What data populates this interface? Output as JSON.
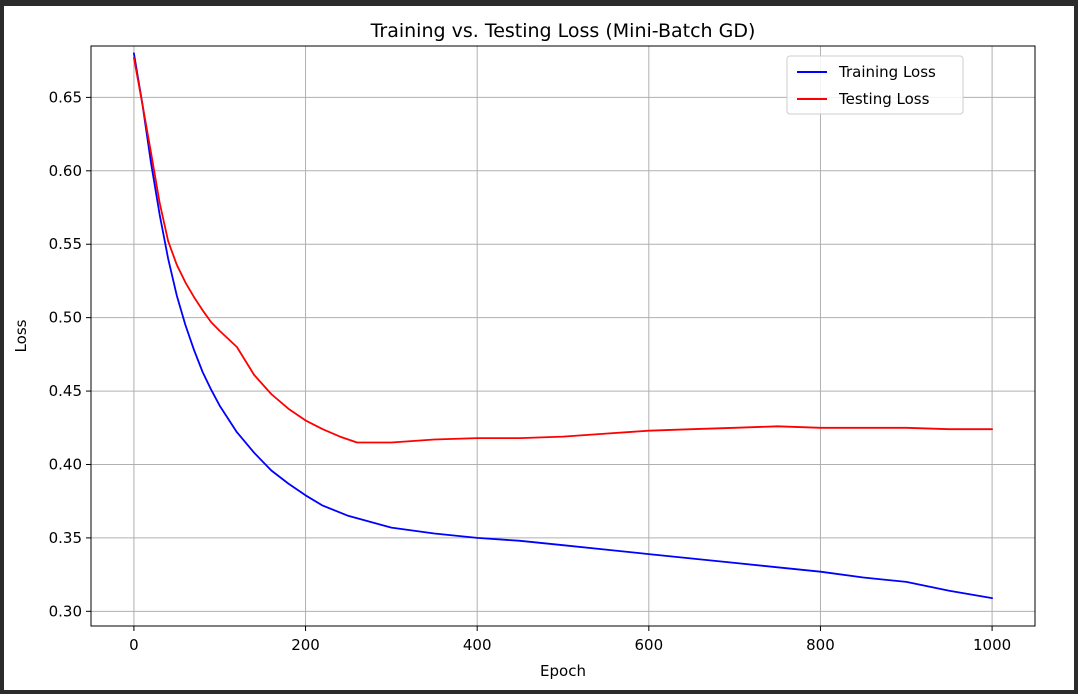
{
  "chart_data": {
    "type": "line",
    "title": "Training vs. Testing Loss (Mini-Batch GD)",
    "xlabel": "Epoch",
    "ylabel": "Loss",
    "xlim": [
      -50,
      1050
    ],
    "ylim": [
      0.29,
      0.685
    ],
    "xticks": [
      0,
      200,
      400,
      600,
      800,
      1000
    ],
    "yticks": [
      0.3,
      0.35,
      0.4,
      0.45,
      0.5,
      0.55,
      0.6,
      0.65
    ],
    "grid": true,
    "legend_position": "top-right",
    "series": [
      {
        "name": "Training Loss",
        "color": "#0000ff",
        "x": [
          0,
          10,
          20,
          30,
          40,
          50,
          60,
          70,
          80,
          90,
          100,
          120,
          140,
          160,
          180,
          200,
          220,
          250,
          300,
          350,
          400,
          450,
          500,
          550,
          600,
          650,
          700,
          750,
          800,
          850,
          900,
          950,
          1000
        ],
        "y": [
          0.68,
          0.645,
          0.605,
          0.57,
          0.54,
          0.515,
          0.495,
          0.478,
          0.463,
          0.451,
          0.44,
          0.422,
          0.408,
          0.396,
          0.387,
          0.379,
          0.372,
          0.365,
          0.357,
          0.353,
          0.35,
          0.348,
          0.345,
          0.342,
          0.339,
          0.336,
          0.333,
          0.33,
          0.327,
          0.323,
          0.32,
          0.314,
          0.309
        ]
      },
      {
        "name": "Testing Loss",
        "color": "#ff0000",
        "x": [
          0,
          10,
          20,
          30,
          40,
          50,
          60,
          70,
          80,
          90,
          100,
          120,
          140,
          160,
          180,
          200,
          220,
          240,
          260,
          280,
          300,
          350,
          400,
          450,
          500,
          550,
          600,
          650,
          700,
          750,
          800,
          850,
          900,
          950,
          1000
        ],
        "y": [
          0.677,
          0.645,
          0.612,
          0.578,
          0.552,
          0.536,
          0.524,
          0.514,
          0.505,
          0.497,
          0.491,
          0.48,
          0.461,
          0.448,
          0.438,
          0.43,
          0.424,
          0.419,
          0.415,
          0.415,
          0.415,
          0.417,
          0.418,
          0.418,
          0.419,
          0.421,
          0.423,
          0.424,
          0.425,
          0.426,
          0.425,
          0.425,
          0.425,
          0.424,
          0.424
        ]
      }
    ]
  }
}
